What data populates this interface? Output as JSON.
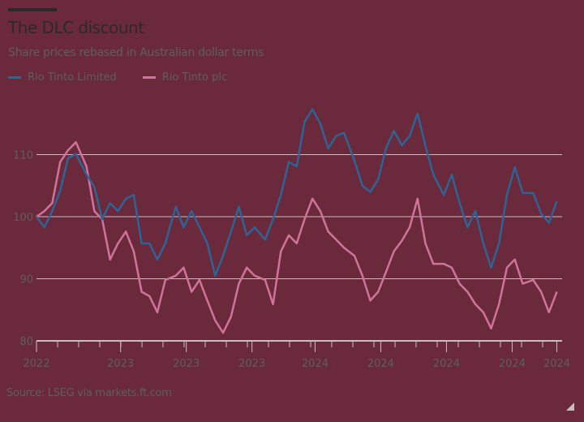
{
  "chart_data": {
    "type": "line",
    "title": "The DLC discount",
    "subtitle": "Share prices rebased in Australian dollar terms",
    "source": "Source: LSEG via markets.ft.com",
    "ylim": [
      80,
      118
    ],
    "yticks": [
      80,
      90,
      100,
      110
    ],
    "xlim": [
      2022.95,
      2024.95
    ],
    "xticks": [
      {
        "value": 2022.95,
        "label": "2022"
      },
      {
        "value": 2023.27,
        "label": "2023"
      },
      {
        "value": 2023.52,
        "label": "2023"
      },
      {
        "value": 2023.77,
        "label": "2023"
      },
      {
        "value": 2024.01,
        "label": "2024"
      },
      {
        "value": 2024.26,
        "label": "2024"
      },
      {
        "value": 2024.51,
        "label": "2024"
      },
      {
        "value": 2024.76,
        "label": "2024"
      },
      {
        "value": 2024.93,
        "label": "2024"
      }
    ],
    "grid": true,
    "legend": "top-left",
    "x": [
      2022.95,
      2022.98,
      2023.01,
      2023.04,
      2023.07,
      2023.1,
      2023.14,
      2023.17,
      2023.2,
      2023.23,
      2023.26,
      2023.29,
      2023.32,
      2023.35,
      2023.38,
      2023.41,
      2023.44,
      2023.48,
      2023.51,
      2023.54,
      2023.57,
      2023.6,
      2023.63,
      2023.66,
      2023.69,
      2023.72,
      2023.75,
      2023.78,
      2023.82,
      2023.85,
      2023.88,
      2023.91,
      2023.94,
      2023.97,
      2024.0,
      2024.03,
      2024.06,
      2024.09,
      2024.12,
      2024.16,
      2024.19,
      2024.22,
      2024.25,
      2024.28,
      2024.31,
      2024.34,
      2024.37,
      2024.4,
      2024.43,
      2024.46,
      2024.5,
      2024.53,
      2024.56,
      2024.59,
      2024.62,
      2024.65,
      2024.68,
      2024.71,
      2024.74,
      2024.77,
      2024.8,
      2024.84,
      2024.87,
      2024.9,
      2024.93
    ],
    "series": [
      {
        "name": "Rio Tinto Limited",
        "color": "#2e6396",
        "values": [
          100.0,
          98.3,
          100.9,
          104.2,
          109.4,
          110.1,
          106.8,
          104.8,
          99.6,
          102.2,
          100.9,
          102.9,
          103.5,
          95.7,
          95.7,
          93.1,
          95.7,
          101.6,
          98.3,
          100.9,
          98.3,
          95.7,
          90.5,
          93.7,
          97.6,
          101.6,
          97.0,
          98.3,
          96.3,
          99.6,
          103.5,
          108.8,
          108.1,
          115.3,
          117.3,
          115.0,
          111.0,
          113.0,
          113.5,
          109.0,
          105.0,
          104.0,
          106.0,
          111.0,
          113.8,
          111.5,
          113.0,
          116.6,
          111.4,
          106.8,
          103.5,
          106.8,
          102.2,
          98.3,
          100.9,
          95.7,
          91.8,
          95.7,
          103.5,
          108.0,
          103.8,
          103.8,
          100.5,
          99.0,
          102.5
        ]
      },
      {
        "name": "Rio Tinto plc",
        "color": "#d0739b",
        "values": [
          100.0,
          100.9,
          102.2,
          108.8,
          110.7,
          112.0,
          108.1,
          100.9,
          99.6,
          93.1,
          95.7,
          97.6,
          94.4,
          87.9,
          87.2,
          84.6,
          89.8,
          90.5,
          91.8,
          87.9,
          89.8,
          86.5,
          83.3,
          81.3,
          83.9,
          89.2,
          91.8,
          90.5,
          89.8,
          85.9,
          94.4,
          97.0,
          95.7,
          99.6,
          102.9,
          100.9,
          97.6,
          96.3,
          95.0,
          93.7,
          90.5,
          86.5,
          87.9,
          91.1,
          94.4,
          96.1,
          98.3,
          102.9,
          95.7,
          92.4,
          92.4,
          91.8,
          89.2,
          87.9,
          85.9,
          84.6,
          82.0,
          85.9,
          91.8,
          93.1,
          89.2,
          89.8,
          87.9,
          84.6,
          87.9
        ]
      }
    ]
  },
  "colors": {
    "background": "#6a2a3b",
    "grid": "#c9bdbf",
    "text": "#5e5e5e",
    "title": "#2a2a2a"
  }
}
